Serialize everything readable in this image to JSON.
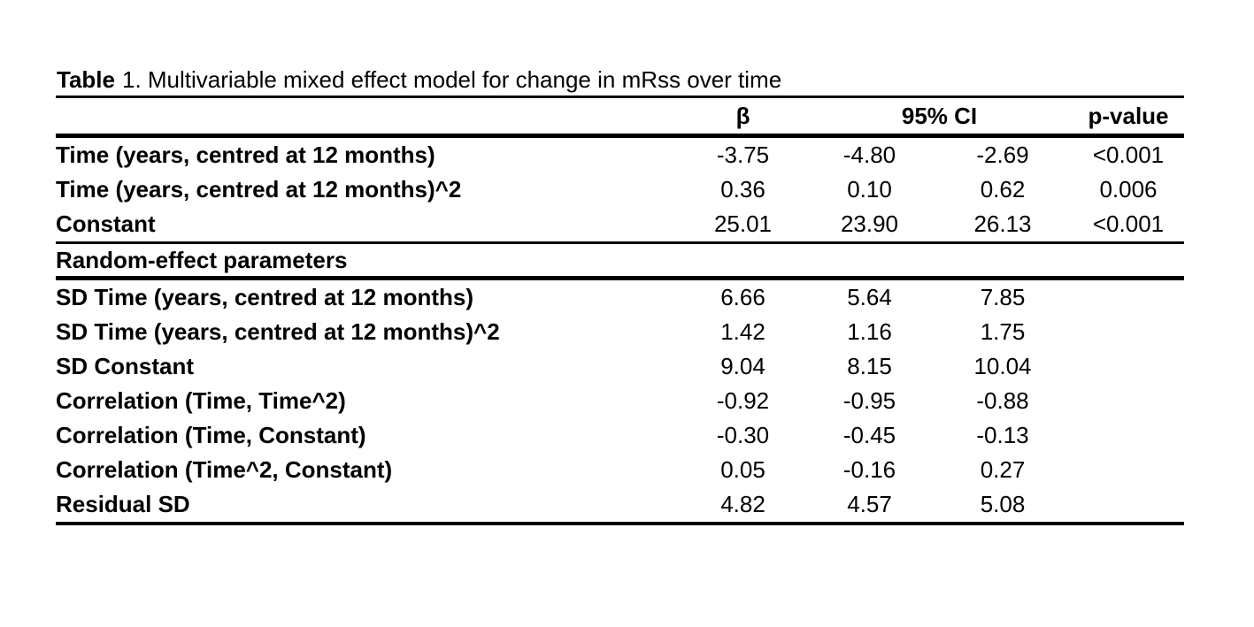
{
  "title": {
    "bold_part": "Table",
    "rest_part": "1. Multivariable mixed effect model for change in mRss over time"
  },
  "table": {
    "headers": {
      "beta": "β",
      "ci": "95% CI",
      "p": "p-value"
    },
    "fixed_rows": [
      {
        "label": "Time (years, centred at 12 months)",
        "beta": "-3.75",
        "ci_low": "-4.80",
        "ci_high": "-2.69",
        "p": "<0.001"
      },
      {
        "label": "Time (years, centred at 12 months)^2",
        "beta": "0.36",
        "ci_low": "0.10",
        "ci_high": "0.62",
        "p": "0.006"
      },
      {
        "label": "Constant",
        "beta": "25.01",
        "ci_low": "23.90",
        "ci_high": "26.13",
        "p": "<0.001"
      }
    ],
    "section_header": "Random-effect parameters",
    "random_rows": [
      {
        "label": "SD Time (years, centred at 12 months)",
        "beta": "6.66",
        "ci_low": "5.64",
        "ci_high": "7.85",
        "p": ""
      },
      {
        "label": "SD Time (years, centred at 12 months)^2",
        "beta": "1.42",
        "ci_low": "1.16",
        "ci_high": "1.75",
        "p": ""
      },
      {
        "label": "SD Constant",
        "beta": "9.04",
        "ci_low": "8.15",
        "ci_high": "10.04",
        "p": ""
      },
      {
        "label": "Correlation (Time, Time^2)",
        "beta": "-0.92",
        "ci_low": "-0.95",
        "ci_high": "-0.88",
        "p": ""
      },
      {
        "label": "Correlation (Time, Constant)",
        "beta": "-0.30",
        "ci_low": "-0.45",
        "ci_high": "-0.13",
        "p": ""
      },
      {
        "label": "Correlation (Time^2, Constant)",
        "beta": "0.05",
        "ci_low": "-0.16",
        "ci_high": "0.27",
        "p": ""
      },
      {
        "label": "Residual SD",
        "beta": "4.82",
        "ci_low": "4.57",
        "ci_high": "5.08",
        "p": ""
      }
    ],
    "colors": {
      "text": "#000000",
      "background": "#ffffff",
      "rule": "#000000"
    }
  }
}
